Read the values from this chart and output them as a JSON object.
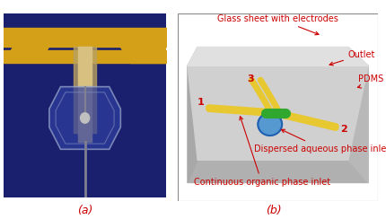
{
  "fig_width": 4.3,
  "fig_height": 2.44,
  "dpi": 100,
  "bg_color": "#ffffff",
  "label_a": "(a)",
  "label_b": "(b)",
  "label_color": "#cc0000",
  "label_fontsize": 9,
  "annotations": {
    "glass_sheet": "Glass sheet with electrodes",
    "outlet": "Outlet",
    "pdms": "PDMS sheet",
    "dispersed": "Dispersed aqueous phase inlet",
    "continuous": "Continuous organic phase inlet"
  },
  "numbers": [
    "1",
    "2",
    "3"
  ],
  "anno_color": "#cc0000",
  "anno_fontsize": 7,
  "num_fontsize": 8,
  "photo_bg": "#1a1f6e",
  "photo_gold": "#d4a017",
  "channel_yellow": "#e8c830",
  "channel_green": "#30a830",
  "channel_blue": "#4090d0"
}
